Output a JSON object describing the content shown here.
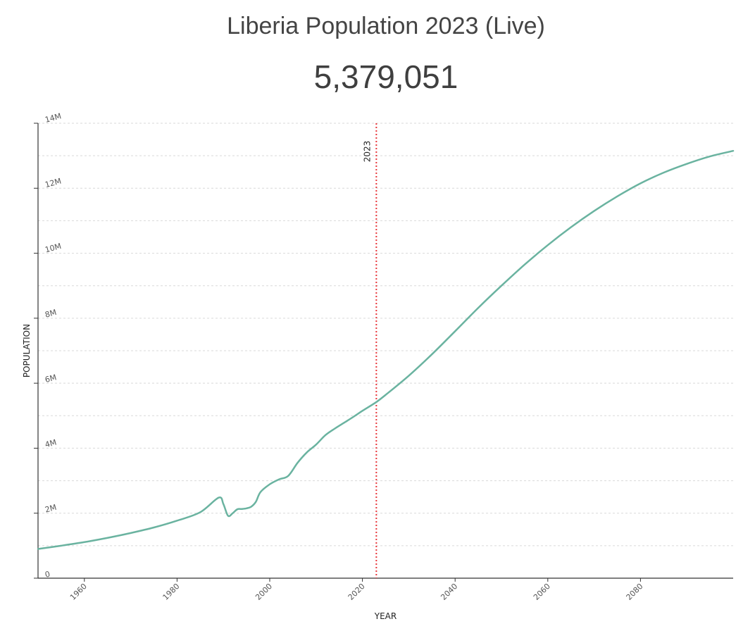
{
  "header": {
    "title": "Liberia Population 2023 (Live)",
    "live_count": "5,379,051"
  },
  "chart_data": {
    "type": "line",
    "title": "Liberia Population 2023 (Live)",
    "xlabel": "YEAR",
    "ylabel": "POPULATION",
    "xlim": [
      1950,
      2100
    ],
    "ylim": [
      0,
      14000000
    ],
    "x_ticks": [
      1960,
      1980,
      2000,
      2020,
      2040,
      2060,
      2080
    ],
    "y_ticks": [
      0,
      2000000,
      4000000,
      6000000,
      8000000,
      10000000,
      12000000,
      14000000
    ],
    "y_tick_labels": [
      "0",
      "2M",
      "4M",
      "6M",
      "8M",
      "10M",
      "12M",
      "14M"
    ],
    "grid": true,
    "marker": {
      "x": 2023,
      "label": "2023",
      "style": "dotted",
      "color": "#e8383d"
    },
    "line_color": "#6ab3a0",
    "series": [
      {
        "x": [
          1950,
          1955,
          1960,
          1965,
          1970,
          1975,
          1980,
          1985,
          1989,
          1990,
          1991,
          1992,
          1993,
          1994,
          1995,
          1996,
          1997,
          1998,
          2000,
          2002,
          2004,
          2006,
          2008,
          2010,
          2012,
          2014,
          2016,
          2018,
          2020,
          2023,
          2025,
          2030,
          2035,
          2040,
          2045,
          2050,
          2055,
          2060,
          2065,
          2070,
          2075,
          2080,
          2085,
          2090,
          2095,
          2100
        ],
        "y": [
          900000,
          1000000,
          1110000,
          1240000,
          1390000,
          1560000,
          1770000,
          2030000,
          2480000,
          2280000,
          1920000,
          2000000,
          2120000,
          2130000,
          2150000,
          2200000,
          2350000,
          2650000,
          2890000,
          3040000,
          3150000,
          3550000,
          3870000,
          4110000,
          4400000,
          4600000,
          4780000,
          4960000,
          5150000,
          5420000,
          5640000,
          6230000,
          6890000,
          7600000,
          8320000,
          9000000,
          9650000,
          10250000,
          10800000,
          11300000,
          11750000,
          12150000,
          12480000,
          12750000,
          12980000,
          13150000
        ]
      }
    ]
  }
}
